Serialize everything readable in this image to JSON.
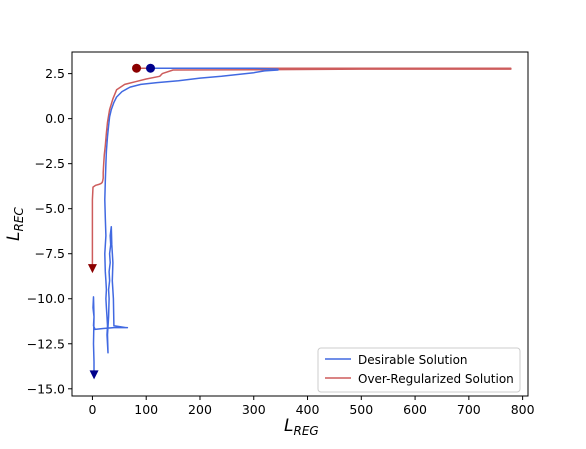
{
  "chart_data": {
    "type": "line",
    "title": "",
    "xlabel": "L",
    "xlabel_subscript": "REG",
    "ylabel": "L",
    "ylabel_subscript": "REC",
    "xlim": [
      -38,
      810
    ],
    "ylim": [
      -15.4,
      3.7
    ],
    "xticks": [
      0,
      100,
      200,
      300,
      400,
      500,
      600,
      700,
      800
    ],
    "xtick_labels": [
      "0",
      "100",
      "200",
      "300",
      "400",
      "500",
      "600",
      "700",
      "800"
    ],
    "yticks": [
      2.5,
      0.0,
      -2.5,
      -5.0,
      -7.5,
      -10.0,
      -12.5,
      -15.0
    ],
    "ytick_labels": [
      "2.5",
      "0.0",
      "−2.5",
      "−5.0",
      "−7.5",
      "−10.0",
      "−12.5",
      "−15.0"
    ],
    "grid": false,
    "legend_position": "lower-right",
    "series": [
      {
        "name": "Desirable Solution",
        "color": "#4169e1",
        "start_marker": "circle",
        "end_marker": "triangle-down",
        "marker_color": "#00008b",
        "x": [
          108,
          140,
          200,
          250,
          300,
          345,
          345,
          320,
          300,
          270,
          240,
          200,
          160,
          120,
          90,
          70,
          55,
          45,
          40,
          35,
          32,
          30,
          28,
          26,
          25,
          24,
          23,
          24,
          25,
          23,
          24,
          25,
          26,
          25,
          26,
          27,
          28,
          27,
          28,
          29,
          28,
          30,
          31,
          30,
          32,
          31,
          33,
          32,
          34,
          33,
          35,
          36,
          38,
          37,
          39,
          40,
          62,
          65,
          40,
          20,
          5,
          2,
          3,
          1,
          2,
          3,
          2,
          3,
          3
        ],
        "y": [
          2.8,
          2.8,
          2.8,
          2.8,
          2.8,
          2.75,
          2.7,
          2.65,
          2.55,
          2.45,
          2.35,
          2.25,
          2.1,
          2.0,
          1.9,
          1.75,
          1.5,
          1.2,
          0.9,
          0.5,
          0.1,
          -0.4,
          -1.0,
          -1.8,
          -2.5,
          -3.5,
          -4.5,
          -5.5,
          -6.5,
          -7.5,
          -8.5,
          -9.0,
          -9.5,
          -10.0,
          -10.5,
          -11.0,
          -11.5,
          -12.0,
          -12.5,
          -13.0,
          -12.0,
          -11.0,
          -10.0,
          -9.5,
          -9.0,
          -8.5,
          -8.0,
          -7.5,
          -7.0,
          -6.5,
          -6.0,
          -7.0,
          -8.0,
          -9.0,
          -10.0,
          -11.5,
          -11.6,
          -11.6,
          -11.6,
          -11.65,
          -11.7,
          -11.5,
          -11.0,
          -10.5,
          -9.9,
          -11.0,
          -12.5,
          -13.5,
          -14.2
        ]
      },
      {
        "name": "Over-Regularized Solution",
        "color": "#cd5c5c",
        "start_marker": "circle",
        "end_marker": "triangle-down",
        "marker_color": "#8b0000",
        "x": [
          82,
          150,
          300,
          500,
          700,
          778,
          778,
          500,
          300,
          150,
          130,
          125,
          100,
          80,
          60,
          45,
          38,
          32,
          28,
          26,
          24,
          22,
          21,
          20,
          20,
          19,
          18,
          16,
          12,
          6,
          1,
          0,
          0,
          0,
          0
        ],
        "y": [
          2.8,
          2.8,
          2.8,
          2.8,
          2.8,
          2.8,
          2.75,
          2.75,
          2.72,
          2.7,
          2.5,
          2.35,
          2.2,
          2.05,
          1.9,
          1.6,
          1.1,
          0.5,
          -0.2,
          -0.8,
          -1.5,
          -2.0,
          -2.5,
          -3.0,
          -3.3,
          -3.45,
          -3.55,
          -3.6,
          -3.65,
          -3.7,
          -3.8,
          -4.5,
          -6.0,
          -7.5,
          -8.3
        ]
      }
    ]
  }
}
